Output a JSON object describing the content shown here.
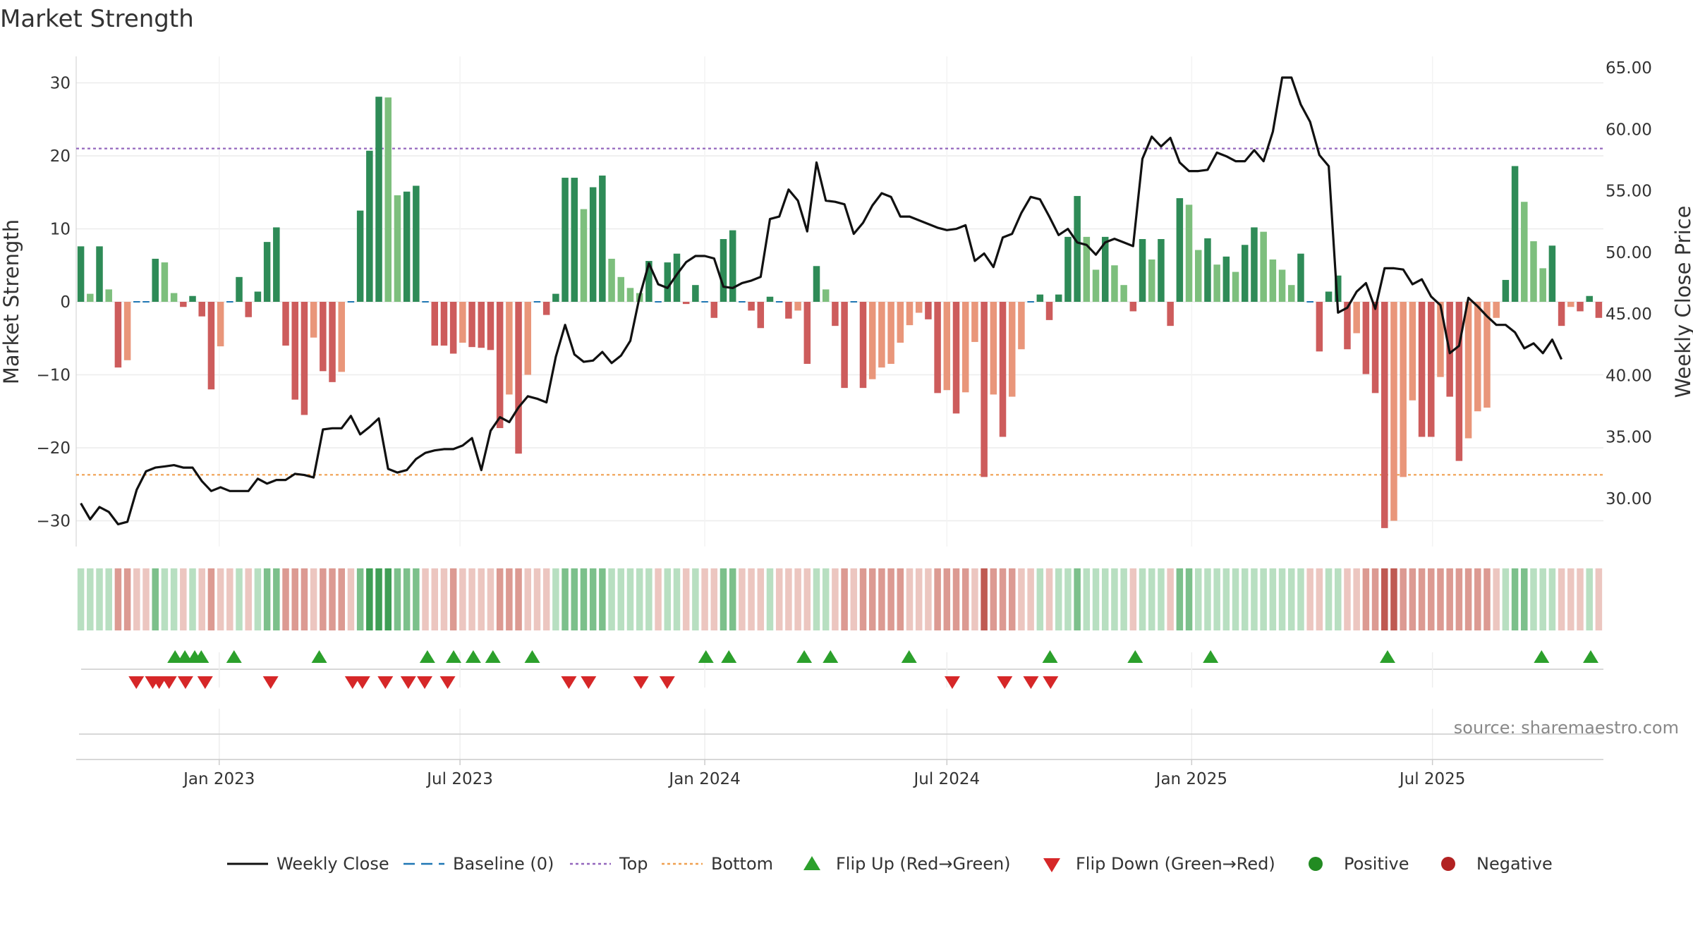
{
  "title": "Market Strength",
  "source": "source: sharemaestro.com",
  "colors": {
    "strong_up": "#2e8b57",
    "weak_up": "#7dbf7d",
    "strong_down": "#cd5c5c",
    "weak_down": "#e9967a",
    "baseline": "#1f77b4",
    "top": "#9467bd",
    "bottom": "#f0a050",
    "close": "#111111",
    "flip_up": "#2ca02c",
    "flip_down": "#d62728",
    "positive": "#228b22",
    "negative": "#b22222"
  },
  "chart_data": {
    "type": "bar",
    "x_start": "2022-09-19",
    "x_interval": "weekly",
    "xticks": [
      "Jan 2023",
      "Jul 2023",
      "Jan 2024",
      "Jul 2024",
      "Jan 2025",
      "Jul 2025"
    ],
    "xtick_dates": [
      "2023-01-01",
      "2023-07-01",
      "2024-01-01",
      "2024-07-01",
      "2025-01-01",
      "2025-07-01"
    ],
    "ylabel": "Market Strength",
    "ylim": [
      -33,
      33
    ],
    "yticks": [
      30,
      20,
      10,
      0,
      -10,
      -20,
      -30
    ],
    "y2label": "Weekly Close Price",
    "y2lim": [
      26.6,
      66.6
    ],
    "y2ticks": [
      "65.00",
      "60.00",
      "55.00",
      "50.00",
      "45.00",
      "40.00",
      "35.00",
      "30.00"
    ],
    "top_line": 21,
    "bottom_line": -23.7,
    "strength": [
      7.6,
      1.1,
      7.6,
      1.7,
      -9,
      -8,
      0,
      0,
      5.9,
      5.4,
      1.2,
      -0.7,
      0.8,
      -2,
      -12,
      -6.1,
      0,
      3.4,
      -2.1,
      1.4,
      8.2,
      10.2,
      -6,
      -13.4,
      -15.5,
      -4.9,
      -9.5,
      -11,
      -9.6,
      0,
      12.5,
      20.7,
      28.1,
      28,
      14.6,
      15.1,
      15.9,
      0,
      -6,
      -6,
      -7.1,
      -5.6,
      -6.2,
      -6.3,
      -6.6,
      -17.3,
      -12.7,
      -20.8,
      -10,
      0,
      -1.8,
      1.1,
      17,
      17,
      12.7,
      15.7,
      17.3,
      5.9,
      3.4,
      1.9,
      1.2,
      5.6,
      0,
      5.4,
      6.6,
      -0.3,
      2.3,
      0,
      -2.2,
      8.6,
      9.8,
      0,
      -1.2,
      -3.6,
      0.7,
      0,
      -2.3,
      -1.2,
      -8.5,
      4.9,
      1.7,
      -3.3,
      -11.8,
      0,
      -11.8,
      -10.6,
      -9,
      -8.5,
      -5.6,
      -3.2,
      -1.5,
      -2.4,
      -12.5,
      -12.1,
      -15.3,
      -12.4,
      -5.5,
      -24,
      -12.7,
      -18.5,
      -13,
      -6.5,
      0,
      1,
      -2.5,
      1,
      8.9,
      14.5,
      8.9,
      4.4,
      8.9,
      5,
      2.3,
      -1.3,
      8.6,
      5.8,
      8.6,
      -3.3,
      14.2,
      13.3,
      7.1,
      8.7,
      5.1,
      6.2,
      4.1,
      7.8,
      10.2,
      9.6,
      5.8,
      4.4,
      2.3,
      6.6,
      0,
      -6.8,
      1.4,
      3.6,
      -6.5,
      -4.3,
      -9.9,
      -12.5,
      -31,
      -30,
      -24,
      -13.5,
      -18.5,
      -18.5,
      -10.3,
      -13,
      -21.8,
      -18.7,
      -15,
      -14.5,
      -2.2,
      3,
      18.6,
      13.7,
      8.3,
      4.6,
      7.7,
      -3.3,
      -0.7,
      -1.3,
      0.8,
      -2.2
    ],
    "close": [
      29.6,
      28.3,
      29.3,
      28.9,
      27.9,
      28.1,
      30.7,
      32.2,
      32.5,
      32.6,
      32.7,
      32.5,
      32.5,
      31.4,
      30.6,
      30.9,
      30.6,
      30.6,
      30.6,
      31.6,
      31.2,
      31.5,
      31.5,
      32,
      31.9,
      31.7,
      35.6,
      35.7,
      35.7,
      36.7,
      35.2,
      35.8,
      36.5,
      32.4,
      32.1,
      32.3,
      33.2,
      33.7,
      33.9,
      34,
      34,
      34.3,
      34.9,
      32.3,
      35.5,
      36.6,
      36.2,
      37.4,
      38.3,
      38.1,
      37.8,
      41.5,
      44.1,
      41.7,
      41.1,
      41.2,
      41.9,
      41,
      41.6,
      42.8,
      46.4,
      49.1,
      47.4,
      47.1,
      48.2,
      49.2,
      49.7,
      49.7,
      49.5,
      47.2,
      47.1,
      47.5,
      47.7,
      48,
      52.7,
      52.9,
      55.1,
      54.2,
      51.7,
      57.3,
      54.2,
      54.1,
      53.9,
      51.5,
      52.4,
      53.8,
      54.8,
      54.5,
      52.9,
      52.9,
      52.6,
      52.3,
      52,
      51.8,
      51.9,
      52.2,
      49.3,
      49.9,
      48.8,
      51.2,
      51.5,
      53.2,
      54.5,
      54.3,
      52.9,
      51.4,
      51.9,
      50.8,
      50.6,
      49.8,
      50.8,
      51.1,
      50.8,
      50.5,
      57.6,
      59.4,
      58.6,
      59.3,
      57.3,
      56.6,
      56.6,
      56.7,
      58.1,
      57.8,
      57.4,
      57.4,
      58.3,
      57.4,
      59.8,
      64.2,
      64.2,
      62,
      60.6,
      57.9,
      57,
      45.1,
      45.5,
      46.8,
      47.5,
      45.4,
      48.7,
      48.7,
      48.6,
      47.4,
      47.8,
      46.4,
      45.7,
      41.8,
      42.4,
      46.3,
      45.6,
      44.8,
      44.1,
      44.1,
      43.5,
      42.2,
      42.6,
      41.8,
      42.9,
      41.3
    ],
    "regime": [
      1,
      1,
      1,
      1,
      -2,
      -2,
      -1,
      -1,
      2,
      1,
      1,
      -1,
      1,
      -1,
      -2,
      -1,
      -1,
      1,
      -1,
      1,
      2,
      2,
      -2,
      -2,
      -2,
      -1,
      -2,
      -2,
      -2,
      -1,
      2,
      3,
      3,
      3,
      2,
      2,
      2,
      -1,
      -1,
      -1,
      -2,
      -1,
      -1,
      -1,
      -1,
      -2,
      -2,
      -2,
      -1,
      -1,
      -1,
      1,
      2,
      2,
      2,
      2,
      2,
      1,
      1,
      1,
      1,
      1,
      -1,
      1,
      1,
      -1,
      1,
      -1,
      -1,
      2,
      2,
      -1,
      -1,
      -1,
      1,
      -1,
      -1,
      -1,
      -1,
      1,
      1,
      -1,
      -2,
      -1,
      -2,
      -2,
      -2,
      -2,
      -2,
      -1,
      -1,
      -1,
      -2,
      -2,
      -2,
      -2,
      -1,
      -3,
      -2,
      -2,
      -2,
      -1,
      -1,
      1,
      -1,
      1,
      1,
      2,
      1,
      1,
      1,
      1,
      1,
      -1,
      1,
      1,
      1,
      -1,
      2,
      2,
      1,
      1,
      1,
      1,
      1,
      1,
      1,
      1,
      1,
      1,
      1,
      1,
      -1,
      -1,
      1,
      1,
      -1,
      -1,
      -2,
      -2,
      -3,
      -3,
      -2,
      -2,
      -2,
      -2,
      -2,
      -2,
      -2,
      -2,
      -2,
      -2,
      -1,
      1,
      2,
      2,
      1,
      1,
      1,
      -1,
      -1,
      -1,
      1,
      -1
    ],
    "flips_up": [
      8,
      11,
      14,
      16,
      26,
      52,
      85,
      93,
      99,
      105,
      117,
      170,
      177,
      200,
      208,
      232,
      275,
      301,
      324,
      378,
      425,
      440
    ],
    "flips_down": [
      5,
      10,
      12,
      15,
      20,
      26,
      46,
      71,
      74,
      81,
      88,
      93,
      100,
      137,
      143,
      159,
      167,
      254,
      270,
      278,
      284
    ],
    "series": [
      {
        "name": "Weekly Close"
      },
      {
        "name": "Baseline (0)"
      },
      {
        "name": "Top"
      },
      {
        "name": "Bottom"
      },
      {
        "name": "Flip Up (Red→Green)"
      },
      {
        "name": "Flip Down (Green→Red)"
      },
      {
        "name": "Positive"
      },
      {
        "name": "Negative"
      }
    ]
  },
  "legend": [
    {
      "label": "Weekly Close",
      "symbol": "line"
    },
    {
      "label": "Baseline (0)",
      "symbol": "dash"
    },
    {
      "label": "Top",
      "symbol": "dot-purple"
    },
    {
      "label": "Bottom",
      "symbol": "dot-orange"
    },
    {
      "label": "Flip Up (Red→Green)",
      "symbol": "triangle-up"
    },
    {
      "label": "Flip Down (Green→Red)",
      "symbol": "triangle-down"
    },
    {
      "label": "Positive",
      "symbol": "circle-green"
    },
    {
      "label": "Negative",
      "symbol": "circle-red"
    }
  ]
}
